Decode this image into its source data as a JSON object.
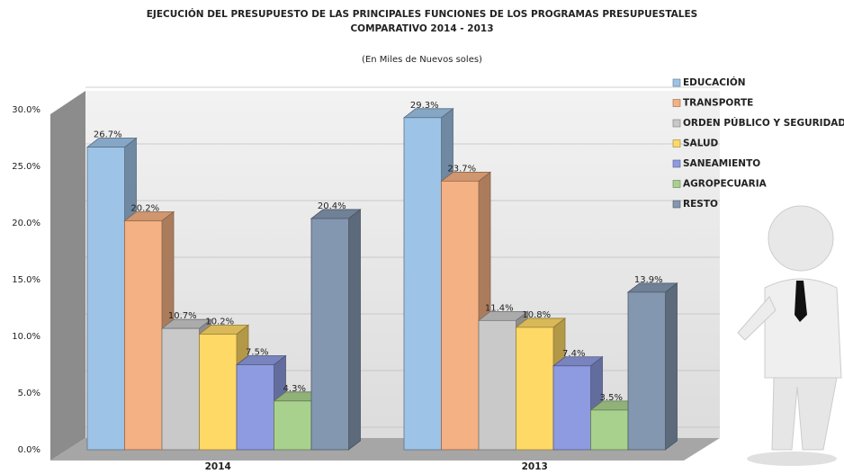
{
  "chart_data": {
    "type": "bar3d",
    "title": "EJECUCIÓN  DEL  PRESUPUESTO DE LAS PRINCIPALES FUNCIONES DE LOS  PROGRAMAS PRESUPUESTALES",
    "title_line2": "COMPARATIVO  2014 - 2013",
    "subtitle": "(En Miles de Nuevos soles)",
    "categories": [
      "2014",
      "2013"
    ],
    "series": [
      {
        "name": "EDUCACIÓN",
        "color": "#9dc3e6",
        "values": [
          26.7,
          29.3
        ],
        "value_labels": [
          "26.7%",
          "29.3%"
        ]
      },
      {
        "name": "TRANSPORTE",
        "color": "#f4b183",
        "values": [
          20.2,
          23.7
        ],
        "value_labels": [
          "20.2%",
          "23.7%"
        ]
      },
      {
        "name": "ORDEN PÚBLICO Y SEGURIDAD",
        "color": "#c9c9c9",
        "values": [
          10.7,
          11.4
        ],
        "value_labels": [
          "10.7%",
          "11.4%"
        ]
      },
      {
        "name": "SALUD",
        "color": "#ffd966",
        "values": [
          10.2,
          10.8
        ],
        "value_labels": [
          "10.2%",
          "10.8%"
        ]
      },
      {
        "name": "SANEAMIENTO",
        "color": "#8e9be0",
        "values": [
          7.5,
          7.4
        ],
        "value_labels": [
          "7.5%",
          "7.4%"
        ]
      },
      {
        "name": "AGROPECUARIA",
        "color": "#a9d18e",
        "values": [
          4.3,
          3.5
        ],
        "value_labels": [
          "4.3%",
          "3.5%"
        ]
      },
      {
        "name": "RESTO",
        "color": "#8497b0",
        "values": [
          20.4,
          13.9
        ],
        "value_labels": [
          "20.4%",
          "13.9%"
        ]
      }
    ],
    "ylim": [
      0,
      30
    ],
    "yticks": [
      {
        "value": 0,
        "label": "0.0%"
      },
      {
        "value": 5,
        "label": "5.0%"
      },
      {
        "value": 10,
        "label": "10.0%"
      },
      {
        "value": 15,
        "label": "15.0%"
      },
      {
        "value": 20,
        "label": "20.0%"
      },
      {
        "value": 25,
        "label": "25.0%"
      },
      {
        "value": 30,
        "label": "30.0%"
      }
    ],
    "grid": true
  }
}
